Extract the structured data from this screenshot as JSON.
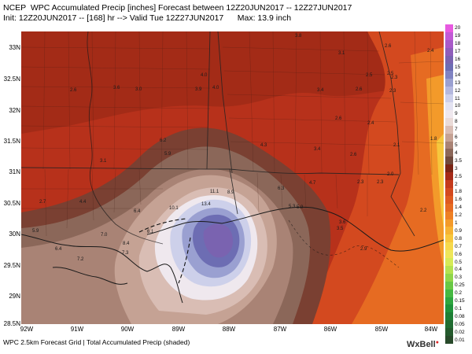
{
  "header": {
    "line1": "NCEP  WPC Accumulated Precip [inches] Forecast between 12Z20JUN2017 -- 12Z27JUN2017",
    "line2": "Init: 12Z20JUN2017 -- [168] hr --> Valid Tue 12Z27JUN2017      Max: 13.9 inch"
  },
  "axes": {
    "y_ticks": [
      "33N",
      "32.5N",
      "32N",
      "31.5N",
      "31N",
      "30.5N",
      "30N",
      "29.5N",
      "29N",
      "28.5N"
    ],
    "x_ticks": [
      "92W",
      "91W",
      "90W",
      "89W",
      "88W",
      "87W",
      "86W",
      "85W",
      "84W"
    ]
  },
  "legend": {
    "labels": [
      "20",
      "19",
      "18",
      "17",
      "16",
      "15",
      "14",
      "13",
      "12",
      "11",
      "10",
      "9",
      "8",
      "7",
      "6",
      "5",
      "4",
      "3.5",
      "3",
      "2.5",
      "2",
      "1.8",
      "1.6",
      "1.4",
      "1.2",
      "1",
      "0.9",
      "0.8",
      "0.7",
      "0.6",
      "0.5",
      "0.4",
      "0.3",
      "0.25",
      "0.2",
      "0.15",
      "0.1",
      "0.08",
      "0.05",
      "0.02",
      "0.01"
    ],
    "colors": [
      "#e75ae0",
      "#c25ad6",
      "#a85ac8",
      "#8f5dba",
      "#7a63b0",
      "#6d6db3",
      "#7f83c2",
      "#9aa0d1",
      "#b4b8de",
      "#cdd0ea",
      "#e3e3f2",
      "#efe8ee",
      "#eadbd8",
      "#d9bdb4",
      "#c5a294",
      "#a98375",
      "#8b6759",
      "#6f4a3d",
      "#7a2516",
      "#a52a18",
      "#c43a1c",
      "#d3491f",
      "#de5a20",
      "#e66b22",
      "#ee8024",
      "#f39a2a",
      "#f6b232",
      "#f7c73d",
      "#f6d94c",
      "#eee65a",
      "#d6ea57",
      "#b3e251",
      "#8fd64a",
      "#69c845",
      "#45b842",
      "#2ea63f",
      "#1f933a",
      "#1e7f35",
      "#216c31",
      "#255a2d",
      "#284a2a"
    ]
  },
  "map_values": [
    "3.8",
    "3.1",
    "2.6",
    "2.4",
    "4.0",
    "3.6",
    "3.4",
    "2.5",
    "2.3",
    "2.6",
    "3.0",
    "4.0",
    "3.9",
    "2.5",
    "2.3",
    "2.4",
    "2.6",
    "2.6",
    "2.1",
    "1.8",
    "6.2",
    "5.9",
    "4.3",
    "3.4",
    "2.6",
    "2.3",
    "2.0",
    "3.1",
    "2.7",
    "4.4",
    "6.4",
    "11.1",
    "8.9",
    "6.3",
    "4.7",
    "2.3",
    "2.2",
    "10.1",
    "13.4",
    "5.9",
    "5.3",
    "3.6",
    "7.0",
    "7.3",
    "3.5",
    "2.9",
    "5.9",
    "6.4",
    "7.2",
    "8.4",
    "6.1"
  ],
  "footer": "WPC 2.5km Forecast Grid | Total Accumulated Precip (shaded)",
  "brand": "WxBell"
}
